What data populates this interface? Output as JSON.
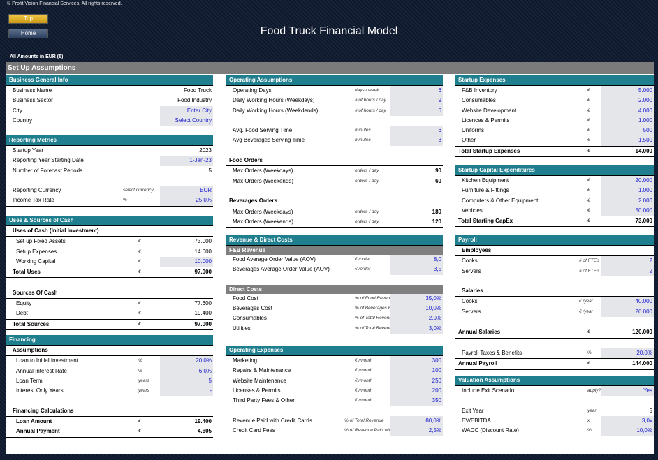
{
  "copyright": "© Profit Vision Financial Services. All rights reserved.",
  "nav": {
    "top": "Top",
    "home": "Home"
  },
  "title": "Food Truck Financial Model",
  "amounts": "All Amounts in  EUR (€)",
  "setup": "Set Up Assumptions",
  "biz": {
    "title": "Business General Info",
    "rows": [
      {
        "label": "Business Name",
        "value": "Food Truck"
      },
      {
        "label": "Business Sector",
        "value": "Food Industry"
      },
      {
        "label": "City",
        "value": "Enter City"
      },
      {
        "label": "Country",
        "value": "Select Country"
      }
    ]
  },
  "rep": {
    "title": "Reporting Metrics",
    "rows": [
      {
        "label": "Startup Year",
        "value": "2023"
      },
      {
        "label": "Reporting Year Starting Date",
        "value": "1-Jan-23"
      },
      {
        "label": "Number of Forecast Periods",
        "value": "5"
      },
      {
        "label": "Reporting Currency",
        "unit": "select currency",
        "value": "EUR"
      },
      {
        "label": "Income Tax Rate",
        "unit": "%",
        "value": "25,0%"
      }
    ]
  },
  "uses": {
    "title": "Uses & Sources of Cash",
    "uses_head": "Uses of Cash (Initial Investment)",
    "uses_rows": [
      {
        "label": "Set up Fixed Assets",
        "unit": "€",
        "value": "73.000"
      },
      {
        "label": "Setup Expenses",
        "unit": "€",
        "value": "14.000"
      },
      {
        "label": "Working Capital",
        "unit": "€",
        "value": "10.000"
      }
    ],
    "total_uses": {
      "label": "Total Uses",
      "unit": "€",
      "value": "97.000"
    },
    "src_head": "Sources Of Cash",
    "src_rows": [
      {
        "label": "Equity",
        "unit": "€",
        "value": "77.600"
      },
      {
        "label": "Debt",
        "unit": "€",
        "value": "19.400"
      }
    ],
    "total_src": {
      "label": "Total Sources",
      "unit": "€",
      "value": "97.000"
    }
  },
  "fin": {
    "title": "Financing",
    "assump_head": "Assumptions",
    "rows": [
      {
        "label": "Loan to Initial Investment",
        "unit": "%",
        "value": "20,0%"
      },
      {
        "label": "Annual Interest Rate",
        "unit": "%",
        "value": "6,0%"
      },
      {
        "label": "Loan Term",
        "unit": "years",
        "value": "5"
      },
      {
        "label": "Interest Only Years",
        "unit": "years",
        "value": "-"
      }
    ],
    "calc_head": "Financing Calculations",
    "calc": [
      {
        "label": "Loan Amount",
        "unit": "€",
        "value": "19.400"
      },
      {
        "label": "Annual Payment",
        "unit": "€",
        "value": "4.605"
      }
    ]
  },
  "ops": {
    "title": "Operating Assumptions",
    "rows": [
      {
        "label": "Operating Days",
        "unit": "days / week",
        "value": "6"
      },
      {
        "label": "Daily Working Hours (Weekdays)",
        "unit": "# of hours / day",
        "value": "9"
      },
      {
        "label": "Daily Working Hours (Weekdends)",
        "unit": "# of hours / day",
        "value": "6"
      }
    ],
    "serve": [
      {
        "label": "Avg. Food Serving Time",
        "unit": "minutes",
        "value": "6"
      },
      {
        "label": "Avg Beverages Serving Time",
        "unit": "minutes",
        "value": "3"
      }
    ],
    "food_head": "Food Orders",
    "food": [
      {
        "label": "Max Orders (Weekdays)",
        "unit": "orders / day",
        "value": "90"
      },
      {
        "label": "Max Orders (Weekends)",
        "unit": "orders / day",
        "value": "60"
      }
    ],
    "bev_head": "Beverages Orders",
    "bev": [
      {
        "label": "Max Orders (Weekdays)",
        "unit": "orders / day",
        "value": "180"
      },
      {
        "label": "Max Orders (Weekends)",
        "unit": "orders / day",
        "value": "120"
      }
    ]
  },
  "rev": {
    "title": "Revenue & Direct Costs",
    "fb": "F&B Revenue",
    "fb_rows": [
      {
        "label": "Food Average Order Value (AOV)",
        "unit": "€ /order",
        "value": "8,0"
      },
      {
        "label": "Beverages Average Order Value (AOV)",
        "unit": "€ /order",
        "value": "3,5"
      }
    ],
    "dc": "Direct Costs",
    "dc_rows": [
      {
        "label": "Food Cost",
        "unit": "% of Food Revenue",
        "value": "35,0%"
      },
      {
        "label": "Beverages Cost",
        "unit": "% of Beverages Revenue",
        "value": "10,0%"
      },
      {
        "label": "Consumables",
        "unit": "% of Total Revenue",
        "value": "2,0%"
      },
      {
        "label": "Utilities",
        "unit": "% of Total Revenue",
        "value": "3,0%"
      }
    ]
  },
  "opex": {
    "title": "Operating Expenses",
    "rows": [
      {
        "label": "Marketing",
        "unit": "€ /month",
        "value": "300"
      },
      {
        "label": "Repairs & Maintenance",
        "unit": "€ /month",
        "value": "100"
      },
      {
        "label": "Website Maintenance",
        "unit": "€ /month",
        "value": "250"
      },
      {
        "label": "Licenses & Permits",
        "unit": "€ /month",
        "value": "200"
      },
      {
        "label": "Third Party Fees & Other",
        "unit": "€ /month",
        "value": "350"
      }
    ],
    "cc": [
      {
        "label": "Revenue Paid with Credit Cards",
        "unit": "% of Total Revenue",
        "value": "80,0%"
      },
      {
        "label": "Credit Card Fees",
        "unit": "% of Revenue Paid with CC",
        "value": "2,5%"
      }
    ]
  },
  "sexp": {
    "title": "Startup Expenses",
    "rows": [
      {
        "label": "F&B Inventory",
        "unit": "€",
        "value": "5.000"
      },
      {
        "label": "Consumables",
        "unit": "€",
        "value": "2.000"
      },
      {
        "label": "Website Development",
        "unit": "€",
        "value": "4.000"
      },
      {
        "label": "Licences & Permits",
        "unit": "€",
        "value": "1.000"
      },
      {
        "label": "Uniforms",
        "unit": "€",
        "value": "500"
      },
      {
        "label": "Other",
        "unit": "€",
        "value": "1.500"
      }
    ],
    "total": {
      "label": "Total Startup Expenses",
      "unit": "€",
      "value": "14.000"
    }
  },
  "capex": {
    "title": "Startup Capital Expenditures",
    "rows": [
      {
        "label": "Kitchen Equipment",
        "unit": "€",
        "value": "20.000"
      },
      {
        "label": "Furniture & Fittings",
        "unit": "€",
        "value": "1.000"
      },
      {
        "label": "Computers & Other Equipment",
        "unit": "€",
        "value": "2.000"
      },
      {
        "label": "Vehicles",
        "unit": "€",
        "value": "50.000"
      }
    ],
    "total": {
      "label": "Total Starting CapEx",
      "unit": "€",
      "value": "73.000"
    }
  },
  "pay": {
    "title": "Payroll",
    "emp": "Employees",
    "emp_rows": [
      {
        "label": "Cooks",
        "unit": "# of FTE's",
        "value": "2"
      },
      {
        "label": "Servers",
        "unit": "# of FTE's",
        "value": "2"
      }
    ],
    "sal": "Salaries",
    "sal_rows": [
      {
        "label": "Cooks",
        "unit": "€ /year",
        "value": "40.000"
      },
      {
        "label": "Servers",
        "unit": "€ /year",
        "value": "20.000"
      }
    ],
    "annual_sal": {
      "label": "Annual Salaries",
      "unit": "€",
      "value": "120.000"
    },
    "tax": {
      "label": "Payroll Taxes & Benefits",
      "unit": "%",
      "value": "20,0%"
    },
    "annual_pay": {
      "label": "Annual Payroll",
      "unit": "€",
      "value": "144.000"
    }
  },
  "val": {
    "title": "Valuation Assumptions",
    "rows": [
      {
        "label": "Include Exit Scenario",
        "unit": "apply?",
        "value": "Yes"
      }
    ],
    "rows2": [
      {
        "label": "Exit Year",
        "unit": "year",
        "value": "5"
      },
      {
        "label": "EV/EBITDA",
        "unit": "x",
        "value": "3,0x"
      },
      {
        "label": "WACC (Discount Rate)",
        "unit": "%",
        "value": "10,0%"
      }
    ]
  }
}
